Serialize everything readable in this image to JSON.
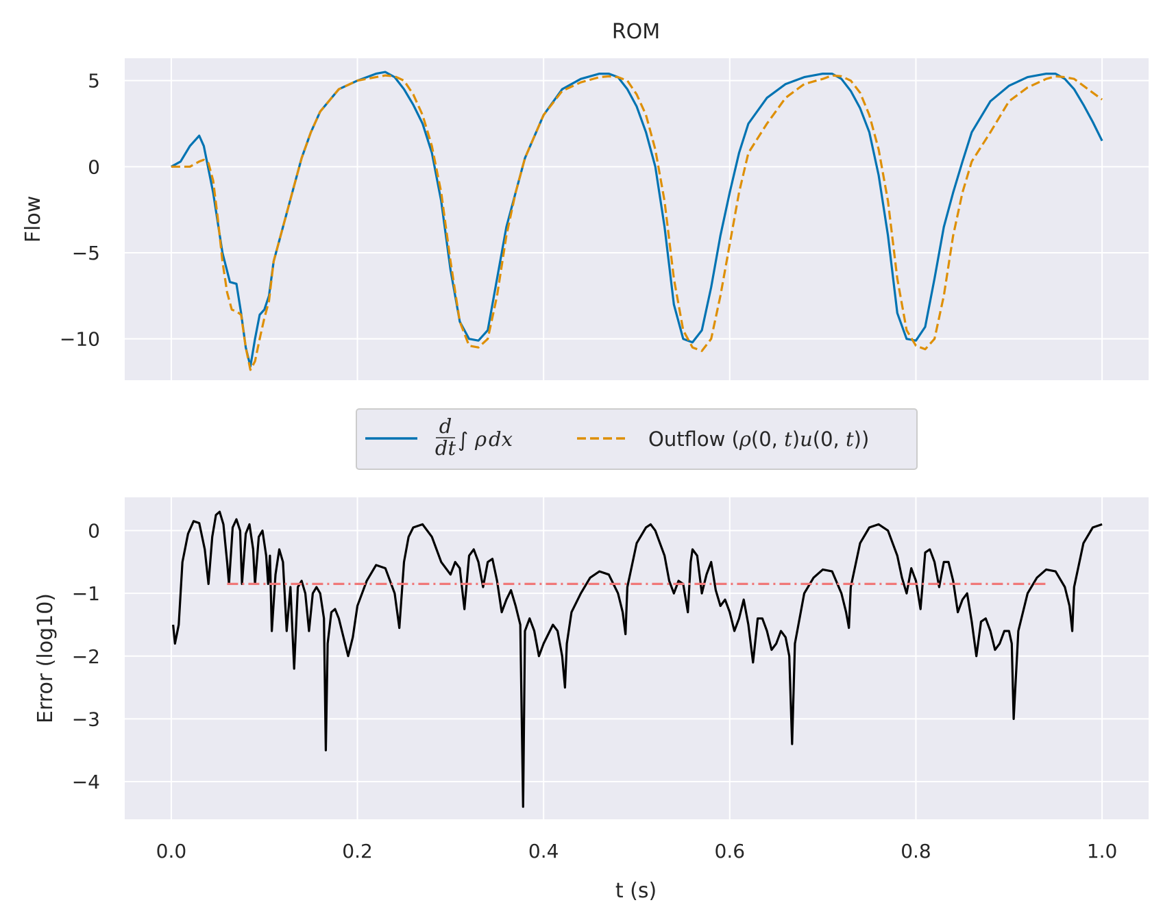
{
  "colors": {
    "background": "#eaeaf2",
    "grid": "#ffffff",
    "derivative": "#0173b2",
    "outflow": "#de8f05",
    "error": "#000000",
    "mean_error": "#f07878"
  },
  "legend": {
    "placement": "between-panels",
    "entries": [
      {
        "key": "derivative",
        "style": "solid",
        "d": "d",
        "dt": "dt",
        "integral": "∫",
        "rho": "ρ",
        "dx": "dx"
      },
      {
        "key": "outflow",
        "style": "dashed",
        "prefix": "Outflow (",
        "rho": "ρ",
        "args1": "(0, ",
        "t1": "t",
        "close1": ")",
        "u": "u",
        "args2": "(0, ",
        "t2": "t",
        "close2": "))"
      }
    ]
  },
  "chart_data": [
    {
      "type": "line",
      "title": "ROM",
      "ylabel": "Flow",
      "xlabel": "",
      "xlim": [
        -0.05,
        1.05
      ],
      "ylim": [
        -12.4,
        6.3
      ],
      "grid": true,
      "xticks": [
        0.0,
        0.2,
        0.4,
        0.6,
        0.8,
        1.0
      ],
      "xtick_labels_visible": false,
      "yticks": [
        5,
        0,
        -5,
        -10
      ],
      "ytick_labels": [
        "5",
        "0",
        "−5",
        "−10"
      ],
      "series": [
        {
          "key": "derivative",
          "style": "solid",
          "x": [
            0.0,
            0.01,
            0.02,
            0.03,
            0.035,
            0.045,
            0.055,
            0.063,
            0.07,
            0.075,
            0.08,
            0.085,
            0.09,
            0.095,
            0.1,
            0.105,
            0.11,
            0.12,
            0.13,
            0.14,
            0.15,
            0.16,
            0.18,
            0.2,
            0.22,
            0.23,
            0.24,
            0.25,
            0.26,
            0.27,
            0.28,
            0.29,
            0.3,
            0.31,
            0.32,
            0.33,
            0.34,
            0.35,
            0.36,
            0.37,
            0.38,
            0.4,
            0.42,
            0.44,
            0.46,
            0.47,
            0.48,
            0.49,
            0.5,
            0.51,
            0.52,
            0.53,
            0.54,
            0.55,
            0.56,
            0.57,
            0.58,
            0.59,
            0.6,
            0.61,
            0.62,
            0.64,
            0.66,
            0.68,
            0.7,
            0.71,
            0.72,
            0.73,
            0.74,
            0.75,
            0.76,
            0.77,
            0.78,
            0.79,
            0.8,
            0.81,
            0.82,
            0.83,
            0.84,
            0.85,
            0.86,
            0.88,
            0.9,
            0.92,
            0.94,
            0.95,
            0.96,
            0.97,
            0.98,
            0.99,
            1.0
          ],
          "y": [
            0.0,
            0.3,
            1.2,
            1.8,
            1.2,
            -1.5,
            -5.0,
            -6.7,
            -6.8,
            -8.5,
            -10.5,
            -11.6,
            -10.0,
            -8.6,
            -8.3,
            -7.5,
            -5.5,
            -3.5,
            -1.5,
            0.5,
            2.0,
            3.2,
            4.5,
            5.0,
            5.4,
            5.5,
            5.2,
            4.5,
            3.6,
            2.5,
            0.8,
            -2.0,
            -6.0,
            -9.0,
            -10.0,
            -10.1,
            -9.5,
            -6.5,
            -3.5,
            -1.5,
            0.5,
            3.0,
            4.5,
            5.1,
            5.4,
            5.4,
            5.2,
            4.5,
            3.5,
            2.0,
            0.0,
            -3.5,
            -8.0,
            -10.0,
            -10.2,
            -9.5,
            -7.0,
            -4.0,
            -1.5,
            0.8,
            2.5,
            4.0,
            4.8,
            5.2,
            5.4,
            5.4,
            5.1,
            4.4,
            3.4,
            2.0,
            -0.5,
            -4.0,
            -8.5,
            -10.0,
            -10.1,
            -9.3,
            -6.5,
            -3.5,
            -1.5,
            0.3,
            2.0,
            3.8,
            4.7,
            5.2,
            5.4,
            5.4,
            5.1,
            4.5,
            3.6,
            2.6,
            1.5
          ]
        },
        {
          "key": "outflow",
          "style": "dashed",
          "x": [
            0.0,
            0.01,
            0.02,
            0.03,
            0.035,
            0.04,
            0.045,
            0.05,
            0.055,
            0.06,
            0.065,
            0.07,
            0.075,
            0.08,
            0.085,
            0.09,
            0.095,
            0.1,
            0.105,
            0.11,
            0.12,
            0.13,
            0.14,
            0.15,
            0.16,
            0.18,
            0.2,
            0.22,
            0.23,
            0.24,
            0.25,
            0.26,
            0.27,
            0.28,
            0.29,
            0.3,
            0.31,
            0.32,
            0.33,
            0.34,
            0.35,
            0.36,
            0.37,
            0.38,
            0.4,
            0.42,
            0.44,
            0.46,
            0.47,
            0.48,
            0.49,
            0.5,
            0.51,
            0.52,
            0.53,
            0.54,
            0.55,
            0.56,
            0.57,
            0.58,
            0.59,
            0.6,
            0.61,
            0.62,
            0.64,
            0.66,
            0.68,
            0.7,
            0.71,
            0.72,
            0.73,
            0.74,
            0.75,
            0.76,
            0.77,
            0.78,
            0.79,
            0.8,
            0.81,
            0.82,
            0.83,
            0.84,
            0.85,
            0.86,
            0.88,
            0.9,
            0.92,
            0.94,
            0.95,
            0.96,
            0.97,
            0.98,
            0.99,
            1.0
          ],
          "y": [
            0.0,
            0.0,
            0.0,
            0.3,
            0.4,
            0.2,
            -0.8,
            -3.0,
            -5.5,
            -7.3,
            -8.3,
            -8.4,
            -8.6,
            -10.5,
            -11.8,
            -11.3,
            -10.0,
            -8.8,
            -7.8,
            -5.5,
            -3.5,
            -1.5,
            0.5,
            2.0,
            3.2,
            4.5,
            5.0,
            5.2,
            5.3,
            5.25,
            5.0,
            4.2,
            3.0,
            1.2,
            -1.5,
            -5.5,
            -9.0,
            -10.4,
            -10.5,
            -10.0,
            -7.5,
            -4.0,
            -1.5,
            0.5,
            3.0,
            4.4,
            4.9,
            5.2,
            5.25,
            5.2,
            5.0,
            4.2,
            3.0,
            1.0,
            -2.0,
            -6.5,
            -9.5,
            -10.5,
            -10.7,
            -10.0,
            -7.5,
            -4.5,
            -1.5,
            0.8,
            2.5,
            4.0,
            4.8,
            5.1,
            5.3,
            5.25,
            5.0,
            4.3,
            3.0,
            1.0,
            -2.0,
            -6.5,
            -9.5,
            -10.4,
            -10.6,
            -10.0,
            -7.5,
            -4.0,
            -1.5,
            0.3,
            2.0,
            3.8,
            4.6,
            5.1,
            5.25,
            5.2,
            5.1,
            4.7,
            4.3,
            3.9
          ]
        }
      ]
    },
    {
      "type": "line",
      "title": "",
      "ylabel": "Error (log10)",
      "xlabel": "t (s)",
      "xlim": [
        -0.05,
        1.05
      ],
      "ylim": [
        -4.6,
        0.53
      ],
      "grid": true,
      "xticks": [
        0.0,
        0.2,
        0.4,
        0.6,
        0.8,
        1.0
      ],
      "xtick_labels": [
        "0.0",
        "0.2",
        "0.4",
        "0.6",
        "0.8",
        "1.0"
      ],
      "yticks": [
        0,
        -1,
        -2,
        -3,
        -4
      ],
      "ytick_labels": [
        "0",
        "−1",
        "−2",
        "−3",
        "−4"
      ],
      "series": [
        {
          "key": "error",
          "style": "solid",
          "x": [
            0.002,
            0.004,
            0.008,
            0.012,
            0.018,
            0.024,
            0.03,
            0.036,
            0.04,
            0.044,
            0.048,
            0.052,
            0.056,
            0.06,
            0.062,
            0.066,
            0.07,
            0.074,
            0.076,
            0.08,
            0.084,
            0.088,
            0.09,
            0.094,
            0.098,
            0.102,
            0.104,
            0.106,
            0.108,
            0.112,
            0.116,
            0.12,
            0.124,
            0.128,
            0.132,
            0.136,
            0.14,
            0.144,
            0.148,
            0.152,
            0.156,
            0.16,
            0.164,
            0.166,
            0.168,
            0.172,
            0.176,
            0.18,
            0.185,
            0.19,
            0.195,
            0.2,
            0.21,
            0.22,
            0.23,
            0.24,
            0.245,
            0.25,
            0.255,
            0.26,
            0.27,
            0.28,
            0.29,
            0.3,
            0.305,
            0.31,
            0.315,
            0.32,
            0.325,
            0.33,
            0.335,
            0.34,
            0.345,
            0.35,
            0.355,
            0.36,
            0.365,
            0.37,
            0.375,
            0.378,
            0.38,
            0.385,
            0.39,
            0.395,
            0.4,
            0.41,
            0.415,
            0.42,
            0.423,
            0.425,
            0.43,
            0.44,
            0.45,
            0.46,
            0.47,
            0.48,
            0.485,
            0.488,
            0.49,
            0.5,
            0.51,
            0.515,
            0.52,
            0.53,
            0.535,
            0.54,
            0.545,
            0.55,
            0.555,
            0.558,
            0.56,
            0.565,
            0.57,
            0.575,
            0.58,
            0.585,
            0.59,
            0.595,
            0.6,
            0.605,
            0.61,
            0.615,
            0.62,
            0.625,
            0.63,
            0.635,
            0.64,
            0.645,
            0.65,
            0.655,
            0.66,
            0.664,
            0.667,
            0.67,
            0.68,
            0.69,
            0.7,
            0.71,
            0.72,
            0.725,
            0.728,
            0.73,
            0.74,
            0.75,
            0.76,
            0.77,
            0.78,
            0.785,
            0.79,
            0.795,
            0.8,
            0.805,
            0.81,
            0.815,
            0.82,
            0.825,
            0.83,
            0.835,
            0.84,
            0.845,
            0.85,
            0.855,
            0.86,
            0.865,
            0.87,
            0.875,
            0.88,
            0.885,
            0.89,
            0.895,
            0.9,
            0.903,
            0.905,
            0.91,
            0.92,
            0.93,
            0.94,
            0.95,
            0.96,
            0.965,
            0.968,
            0.97,
            0.98,
            0.99,
            1.0
          ],
          "y": [
            -1.5,
            -1.8,
            -1.5,
            -0.5,
            -0.05,
            0.15,
            0.12,
            -0.3,
            -0.85,
            -0.1,
            0.25,
            0.3,
            0.1,
            -0.5,
            -0.85,
            0.05,
            0.18,
            0.0,
            -0.85,
            -0.05,
            0.1,
            -0.3,
            -0.85,
            -0.1,
            0.0,
            -0.4,
            -0.85,
            -0.4,
            -1.6,
            -0.7,
            -0.3,
            -0.5,
            -1.6,
            -0.9,
            -2.2,
            -0.9,
            -0.8,
            -1.0,
            -1.6,
            -1.0,
            -0.9,
            -1.0,
            -1.4,
            -3.5,
            -1.8,
            -1.3,
            -1.25,
            -1.4,
            -1.7,
            -2.0,
            -1.7,
            -1.2,
            -0.8,
            -0.55,
            -0.6,
            -1.0,
            -1.55,
            -0.5,
            -0.1,
            0.05,
            0.1,
            -0.1,
            -0.5,
            -0.7,
            -0.5,
            -0.6,
            -1.25,
            -0.4,
            -0.3,
            -0.5,
            -0.9,
            -0.5,
            -0.45,
            -0.8,
            -1.3,
            -1.1,
            -0.95,
            -1.2,
            -1.5,
            -4.4,
            -1.6,
            -1.4,
            -1.6,
            -2.0,
            -1.8,
            -1.5,
            -1.6,
            -2.0,
            -2.5,
            -1.8,
            -1.3,
            -1.0,
            -0.75,
            -0.65,
            -0.7,
            -1.0,
            -1.3,
            -1.65,
            -0.9,
            -0.2,
            0.05,
            0.1,
            0.0,
            -0.4,
            -0.8,
            -1.0,
            -0.8,
            -0.85,
            -1.3,
            -0.5,
            -0.3,
            -0.4,
            -1.0,
            -0.7,
            -0.5,
            -0.95,
            -1.2,
            -1.1,
            -1.3,
            -1.6,
            -1.4,
            -1.1,
            -1.5,
            -2.1,
            -1.4,
            -1.4,
            -1.6,
            -1.9,
            -1.8,
            -1.6,
            -1.7,
            -2.0,
            -3.4,
            -1.8,
            -1.0,
            -0.75,
            -0.62,
            -0.65,
            -1.0,
            -1.3,
            -1.55,
            -0.9,
            -0.2,
            0.05,
            0.1,
            0.0,
            -0.4,
            -0.75,
            -1.0,
            -0.6,
            -0.8,
            -1.25,
            -0.35,
            -0.3,
            -0.5,
            -0.9,
            -0.5,
            -0.5,
            -0.8,
            -1.3,
            -1.1,
            -1.0,
            -1.45,
            -2.0,
            -1.45,
            -1.4,
            -1.6,
            -1.9,
            -1.8,
            -1.6,
            -1.6,
            -1.8,
            -3.0,
            -1.6,
            -1.0,
            -0.75,
            -0.62,
            -0.65,
            -0.9,
            -1.2,
            -1.6,
            -0.9,
            -0.2,
            0.05,
            0.1
          ]
        },
        {
          "key": "mean_error",
          "style": "dashdot",
          "x": [
            0.06,
            0.94
          ],
          "y": [
            -0.85,
            -0.85
          ]
        }
      ]
    }
  ]
}
